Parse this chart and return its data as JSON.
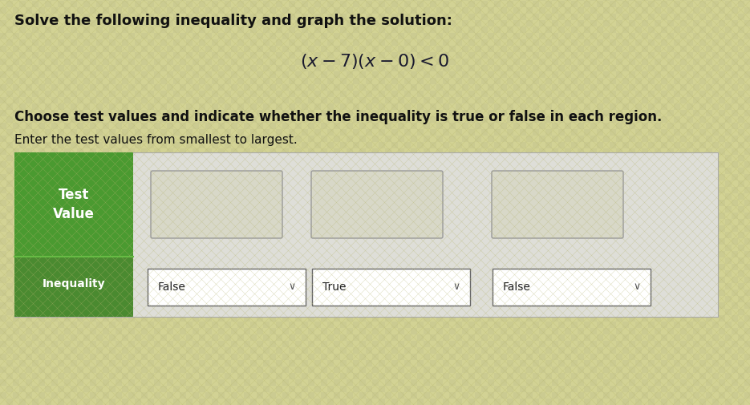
{
  "title_line1": "Solve the following inequality and graph the solution:",
  "equation": "$(x - 7)(x - 0) < 0$",
  "instruction1": "Choose test values and indicate whether the inequality is true or false in each region.",
  "instruction2": "Enter the test values from smallest to largest.",
  "label_test": "Test\nValue",
  "label_inequality": "Inequality",
  "dropdown1": "False",
  "dropdown2": "True",
  "dropdown3": "False",
  "bg_color": "#cece9a",
  "green_header": "#4a9a30",
  "green_row2": "#4a8a30",
  "table_bg": "#deded8",
  "box_fill": "#d8d8c8",
  "drop_fill": "#ffffff",
  "box_border": "#888888",
  "text_dark": "#111111",
  "text_white": "#ffffff",
  "title_fontsize": 13,
  "eq_fontsize": 16,
  "body_fontsize": 12,
  "small_fontsize": 11
}
